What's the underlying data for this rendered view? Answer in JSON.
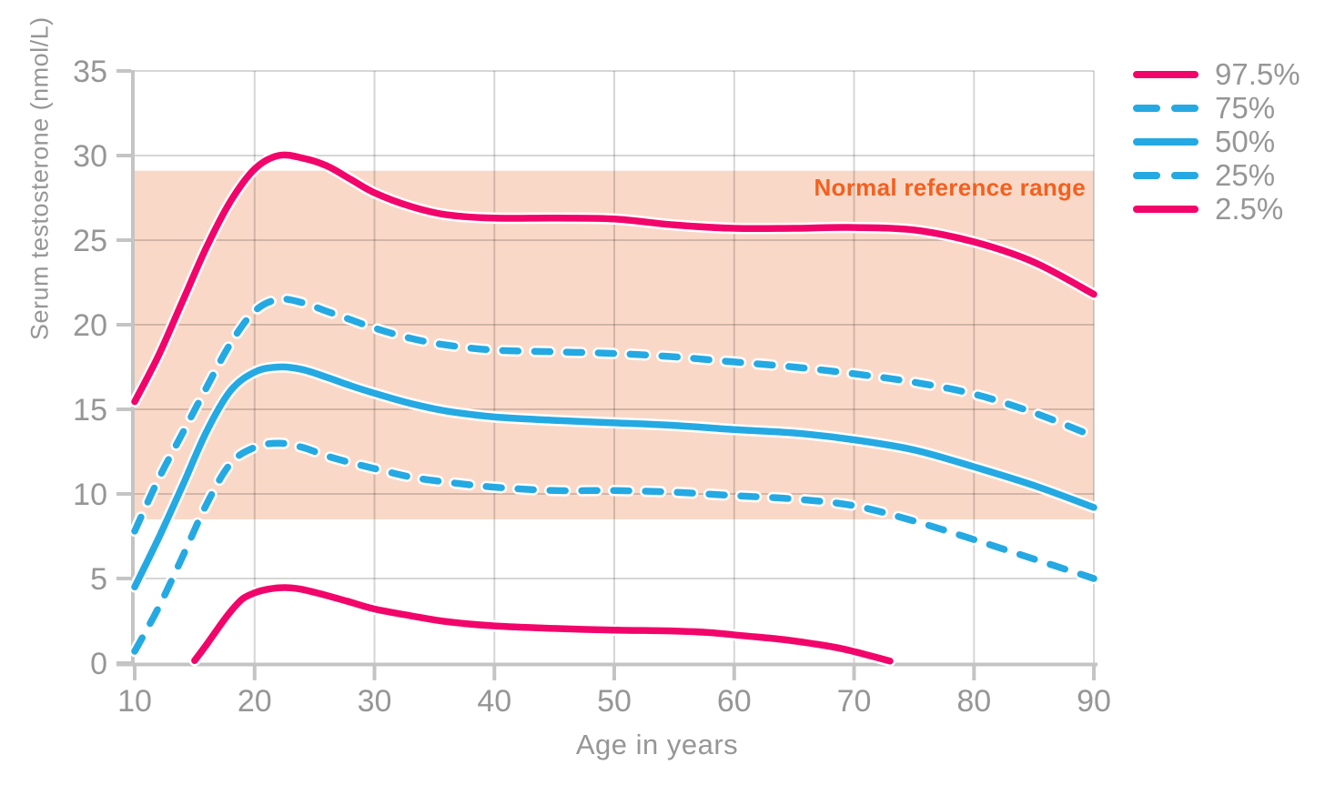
{
  "chart_data": {
    "type": "line",
    "title": "",
    "xlabel": "Age in years",
    "ylabel": "Serum testosterone (nmol/L)",
    "xlim": [
      10,
      90
    ],
    "ylim": [
      0,
      35
    ],
    "x_ticks": [
      10,
      20,
      30,
      40,
      50,
      60,
      70,
      80,
      90
    ],
    "y_ticks": [
      0,
      5,
      10,
      15,
      20,
      25,
      30,
      35
    ],
    "grid": true,
    "legend_position": "outside-top-right",
    "axis_color": "#C4C4C4",
    "text_color": "#969696",
    "grid_color": "rgba(0,0,0,0.16)",
    "reference_band": {
      "label": "Normal reference range",
      "from": 8.5,
      "to": 29.1,
      "fill": "#FAD8C7",
      "label_color": "#F3601F"
    },
    "series": [
      {
        "name": "97.5%",
        "color": "#F2056B",
        "style": "solid",
        "x": [
          10,
          12,
          14,
          16,
          18,
          20,
          22,
          24,
          26,
          28,
          30,
          33,
          36,
          40,
          45,
          50,
          55,
          60,
          65,
          70,
          75,
          80,
          85,
          90
        ],
        "values": [
          15.45,
          18.2,
          21.4,
          24.6,
          27.3,
          29.2,
          30.0,
          29.85,
          29.4,
          28.6,
          27.8,
          27.0,
          26.5,
          26.3,
          26.3,
          26.25,
          25.9,
          25.7,
          25.7,
          25.75,
          25.6,
          24.9,
          23.7,
          21.8
        ]
      },
      {
        "name": "75%",
        "color": "#25A9E2",
        "style": "dashed",
        "x": [
          10,
          12,
          14,
          16,
          18,
          20,
          22,
          24,
          26,
          28,
          30,
          33,
          36,
          40,
          45,
          50,
          55,
          60,
          65,
          70,
          75,
          80,
          85,
          90
        ],
        "values": [
          7.8,
          10.9,
          13.6,
          16.3,
          18.9,
          20.8,
          21.5,
          21.3,
          20.8,
          20.3,
          19.8,
          19.2,
          18.8,
          18.5,
          18.4,
          18.3,
          18.1,
          17.8,
          17.5,
          17.1,
          16.6,
          15.9,
          14.8,
          13.4
        ]
      },
      {
        "name": "50%",
        "color": "#25A9E2",
        "style": "solid",
        "x": [
          10,
          12,
          14,
          16,
          18,
          20,
          22,
          24,
          26,
          28,
          30,
          33,
          36,
          40,
          45,
          50,
          55,
          60,
          65,
          70,
          75,
          80,
          85,
          90
        ],
        "values": [
          4.5,
          7.4,
          10.5,
          13.7,
          16.1,
          17.2,
          17.5,
          17.35,
          16.9,
          16.4,
          15.95,
          15.35,
          14.9,
          14.55,
          14.35,
          14.2,
          14.05,
          13.8,
          13.6,
          13.2,
          12.6,
          11.6,
          10.5,
          9.2
        ]
      },
      {
        "name": "25%",
        "color": "#25A9E2",
        "style": "dashed",
        "x": [
          10,
          12,
          14,
          16,
          18,
          20,
          22,
          24,
          26,
          28,
          30,
          33,
          36,
          40,
          45,
          50,
          55,
          60,
          65,
          70,
          75,
          80,
          85,
          90
        ],
        "values": [
          0.7,
          3.3,
          6.3,
          9.4,
          11.8,
          12.75,
          13.0,
          12.75,
          12.25,
          11.85,
          11.5,
          11.0,
          10.7,
          10.4,
          10.2,
          10.2,
          10.1,
          9.9,
          9.7,
          9.3,
          8.4,
          7.3,
          6.15,
          5.0
        ]
      },
      {
        "name": "2.5%",
        "color": "#F2056B",
        "style": "solid",
        "x": [
          15,
          16,
          17,
          18,
          19,
          20,
          21,
          22,
          23,
          24,
          26,
          28,
          30,
          33,
          36,
          40,
          45,
          50,
          55,
          58,
          61,
          64,
          67,
          69,
          71,
          73
        ],
        "values": [
          0.15,
          1.1,
          2.1,
          3.05,
          3.8,
          4.15,
          4.35,
          4.45,
          4.45,
          4.35,
          4.0,
          3.6,
          3.2,
          2.8,
          2.45,
          2.2,
          2.05,
          1.95,
          1.9,
          1.8,
          1.6,
          1.4,
          1.1,
          0.85,
          0.5,
          0.12
        ]
      }
    ]
  }
}
